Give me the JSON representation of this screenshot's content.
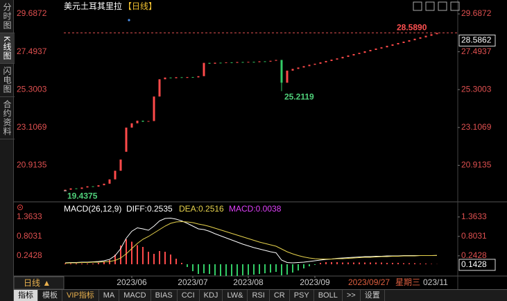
{
  "sidebar_tabs": [
    "分时图",
    "K线图",
    "闪电图",
    "合约资料"
  ],
  "period_button": "日线 ▲",
  "toolbar_tabs": [
    "指标",
    "模板",
    "VIP指标",
    "MA",
    "MACD",
    "BIAS",
    "CCI",
    "KDJ",
    "LW&",
    "RSI",
    "CR",
    "PSY",
    "BOLL",
    ">>",
    "设置"
  ],
  "cursor_date": "2023/09/27",
  "cursor_weekday": "星期三",
  "x_end_label": "023/11",
  "chart_data": [
    {
      "type": "candlestick",
      "title": "美元土耳其里拉",
      "title_tag": "【日线】",
      "categories": [
        null,
        null,
        null,
        null,
        null,
        null,
        null,
        null,
        null,
        null,
        null,
        null,
        "2023/06",
        null,
        null,
        null,
        null,
        null,
        null,
        null,
        null,
        null,
        null,
        "2023/07",
        null,
        null,
        null,
        null,
        null,
        null,
        null,
        null,
        null,
        "2023/08",
        null,
        null,
        null,
        null,
        null,
        null,
        null,
        null,
        null,
        null,
        null,
        "2023/09",
        null,
        null,
        null,
        null,
        null,
        null,
        null,
        null,
        null,
        null,
        null,
        null,
        null,
        null,
        null,
        null,
        null,
        null,
        null,
        null,
        null,
        null
      ],
      "open": [
        19.44,
        19.5,
        19.58,
        19.55,
        19.63,
        19.7,
        19.68,
        19.76,
        19.85,
        20.1,
        20.6,
        21.7,
        23.1,
        23.35,
        23.5,
        23.44,
        23.48,
        24.9,
        25.9,
        26.0,
        25.96,
        26.02,
        25.98,
        26.03,
        26.01,
        26.08,
        26.85,
        26.8,
        26.86,
        26.84,
        26.88,
        26.85,
        26.9,
        26.87,
        26.91,
        26.89,
        26.94,
        26.92,
        26.97,
        27.02,
        25.7,
        26.4,
        26.5,
        26.58,
        26.66,
        26.74,
        26.8,
        26.88,
        26.96,
        27.04,
        27.11,
        27.2,
        27.28,
        27.36,
        27.43,
        27.52,
        27.6,
        27.68,
        27.75,
        27.84,
        27.92,
        28.0,
        28.08,
        28.16,
        28.25,
        28.33,
        28.42,
        28.51
      ],
      "close": [
        19.5,
        19.58,
        19.55,
        19.63,
        19.7,
        19.68,
        19.76,
        19.85,
        20.1,
        20.6,
        21.25,
        23.1,
        23.35,
        23.5,
        23.44,
        23.48,
        24.9,
        25.9,
        26.0,
        25.96,
        26.02,
        25.98,
        26.03,
        26.01,
        26.08,
        26.85,
        26.8,
        26.86,
        26.84,
        26.88,
        26.85,
        26.9,
        26.87,
        26.91,
        26.89,
        26.94,
        26.92,
        26.97,
        27.02,
        25.7,
        26.4,
        26.5,
        26.58,
        26.66,
        26.74,
        26.8,
        26.88,
        26.96,
        27.04,
        27.11,
        27.2,
        27.28,
        27.36,
        27.43,
        27.52,
        27.6,
        27.68,
        27.75,
        27.84,
        27.92,
        28.0,
        28.08,
        28.16,
        28.25,
        28.33,
        28.42,
        28.51,
        28.5862
      ],
      "up_color": "#ff4a4a",
      "down_color": "#33cc66",
      "ylim": [
        18.84,
        30.01
      ],
      "yticks": [
        20.9135,
        23.1069,
        25.3003,
        27.4937,
        29.6872
      ],
      "high_marker": {
        "value": 28.589,
        "label": "28.5890"
      },
      "low_marker": 25.2119,
      "start_low": 19.4375,
      "last_price": 28.5862
    },
    {
      "type": "macd",
      "legend_title": "MACD(26,12,9)",
      "series": [
        {
          "name": "DIFF:0.2535",
          "color": "#ffffff",
          "values": [
            0.04,
            0.05,
            0.05,
            0.06,
            0.06,
            0.07,
            0.08,
            0.1,
            0.14,
            0.25,
            0.45,
            0.75,
            0.95,
            1.05,
            1.02,
            0.98,
            1.1,
            1.25,
            1.32,
            1.33,
            1.3,
            1.25,
            1.18,
            1.1,
            1.02,
            1.0,
            0.95,
            0.88,
            0.82,
            0.76,
            0.7,
            0.64,
            0.58,
            0.53,
            0.48,
            0.44,
            0.4,
            0.36,
            0.33,
            0.12,
            0.05,
            0.04,
            0.05,
            0.06,
            0.08,
            0.1,
            0.12,
            0.14,
            0.15,
            0.17,
            0.18,
            0.19,
            0.2,
            0.21,
            0.22,
            0.22,
            0.23,
            0.23,
            0.24,
            0.24,
            0.24,
            0.25,
            0.25,
            0.25,
            0.25,
            0.25,
            0.25,
            0.2535
          ]
        },
        {
          "name": "DEA:0.2516",
          "color": "#e8d44d",
          "values": [
            0.03,
            0.04,
            0.04,
            0.05,
            0.05,
            0.06,
            0.06,
            0.07,
            0.08,
            0.11,
            0.18,
            0.3,
            0.45,
            0.6,
            0.72,
            0.8,
            0.9,
            1.0,
            1.1,
            1.18,
            1.22,
            1.23,
            1.22,
            1.2,
            1.16,
            1.13,
            1.09,
            1.04,
            0.99,
            0.94,
            0.89,
            0.84,
            0.79,
            0.74,
            0.69,
            0.64,
            0.6,
            0.56,
            0.52,
            0.44,
            0.36,
            0.3,
            0.25,
            0.21,
            0.18,
            0.16,
            0.15,
            0.15,
            0.15,
            0.16,
            0.16,
            0.17,
            0.18,
            0.19,
            0.2,
            0.2,
            0.21,
            0.22,
            0.22,
            0.23,
            0.23,
            0.24,
            0.24,
            0.24,
            0.25,
            0.25,
            0.25,
            0.2516
          ]
        },
        {
          "name": "MACD:0.0038",
          "color": "#e040fb",
          "up_color": "#ff4a4a",
          "down_color": "#33cc66",
          "values": [
            0.02,
            0.02,
            0.02,
            0.02,
            0.02,
            0.02,
            0.04,
            0.06,
            0.12,
            0.28,
            0.54,
            0.72,
            0.65,
            0.55,
            0.5,
            0.36,
            0.3,
            0.38,
            0.36,
            0.28,
            0.16,
            0.04,
            -0.08,
            -0.2,
            -0.28,
            -0.26,
            -0.28,
            -0.32,
            -0.34,
            -0.34,
            -0.34,
            -0.34,
            -0.32,
            -0.31,
            -0.3,
            -0.28,
            -0.26,
            -0.24,
            -0.22,
            -0.32,
            -0.3,
            -0.24,
            -0.18,
            -0.12,
            -0.06,
            -0.02,
            0.04,
            0.06,
            0.06,
            0.06,
            0.05,
            0.05,
            0.05,
            0.05,
            0.05,
            0.05,
            0.05,
            0.05,
            0.04,
            0.04,
            0.04,
            0.03,
            0.03,
            0.03,
            0.02,
            0.02,
            0.01,
            0.0038
          ]
        }
      ],
      "ylim": [
        -0.38,
        1.52
      ],
      "yticks": [
        0.2428,
        0.8031,
        1.3633
      ],
      "cursor_value": 0.1428
    }
  ]
}
